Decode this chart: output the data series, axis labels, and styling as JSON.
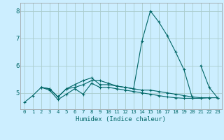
{
  "xlabel": "Humidex (Indice chaleur)",
  "bg_color": "#cceeff",
  "grid_color": "#aacccc",
  "line_color": "#006666",
  "xlim": [
    -0.5,
    23.5
  ],
  "ylim": [
    4.4,
    8.3
  ],
  "yticks": [
    5,
    6,
    7,
    8
  ],
  "xticks": [
    0,
    1,
    2,
    3,
    4,
    5,
    6,
    7,
    8,
    9,
    10,
    11,
    12,
    13,
    14,
    15,
    16,
    17,
    18,
    19,
    20,
    21,
    22,
    23
  ],
  "series": [
    {
      "x": [
        0,
        1,
        2,
        3,
        4,
        5,
        6,
        7,
        8,
        9,
        10,
        11,
        12,
        13,
        14,
        15,
        16,
        17,
        18,
        19,
        20,
        21,
        22,
        23
      ],
      "y": [
        4.65,
        4.9,
        5.2,
        5.15,
        4.85,
        5.15,
        5.2,
        5.3,
        5.45,
        5.45,
        5.35,
        5.25,
        5.2,
        5.15,
        5.1,
        5.1,
        5.05,
        5.0,
        4.95,
        4.9,
        4.85,
        4.82,
        4.82,
        4.82
      ]
    },
    {
      "x": [
        2,
        3,
        4,
        5,
        6,
        7,
        8,
        9,
        10,
        11,
        12,
        13,
        14,
        15,
        16,
        17,
        18,
        19,
        20
      ],
      "y": [
        5.2,
        5.15,
        4.85,
        5.15,
        5.3,
        5.45,
        5.55,
        5.3,
        5.3,
        5.25,
        5.2,
        5.15,
        6.9,
        8.0,
        7.6,
        7.1,
        6.5,
        5.85,
        4.8
      ]
    },
    {
      "x": [
        2,
        3,
        4,
        5,
        6,
        7,
        8,
        9,
        10,
        11,
        12,
        13,
        14,
        15,
        16,
        17,
        18,
        19,
        20,
        21,
        22
      ],
      "y": [
        5.2,
        5.1,
        4.75,
        4.95,
        5.15,
        4.95,
        5.35,
        5.2,
        5.2,
        5.15,
        5.1,
        5.05,
        5.0,
        4.95,
        4.9,
        4.85,
        4.82,
        4.8,
        4.8,
        4.8,
        4.82
      ]
    },
    {
      "x": [
        21,
        22,
        23
      ],
      "y": [
        6.0,
        5.2,
        4.82
      ]
    }
  ]
}
